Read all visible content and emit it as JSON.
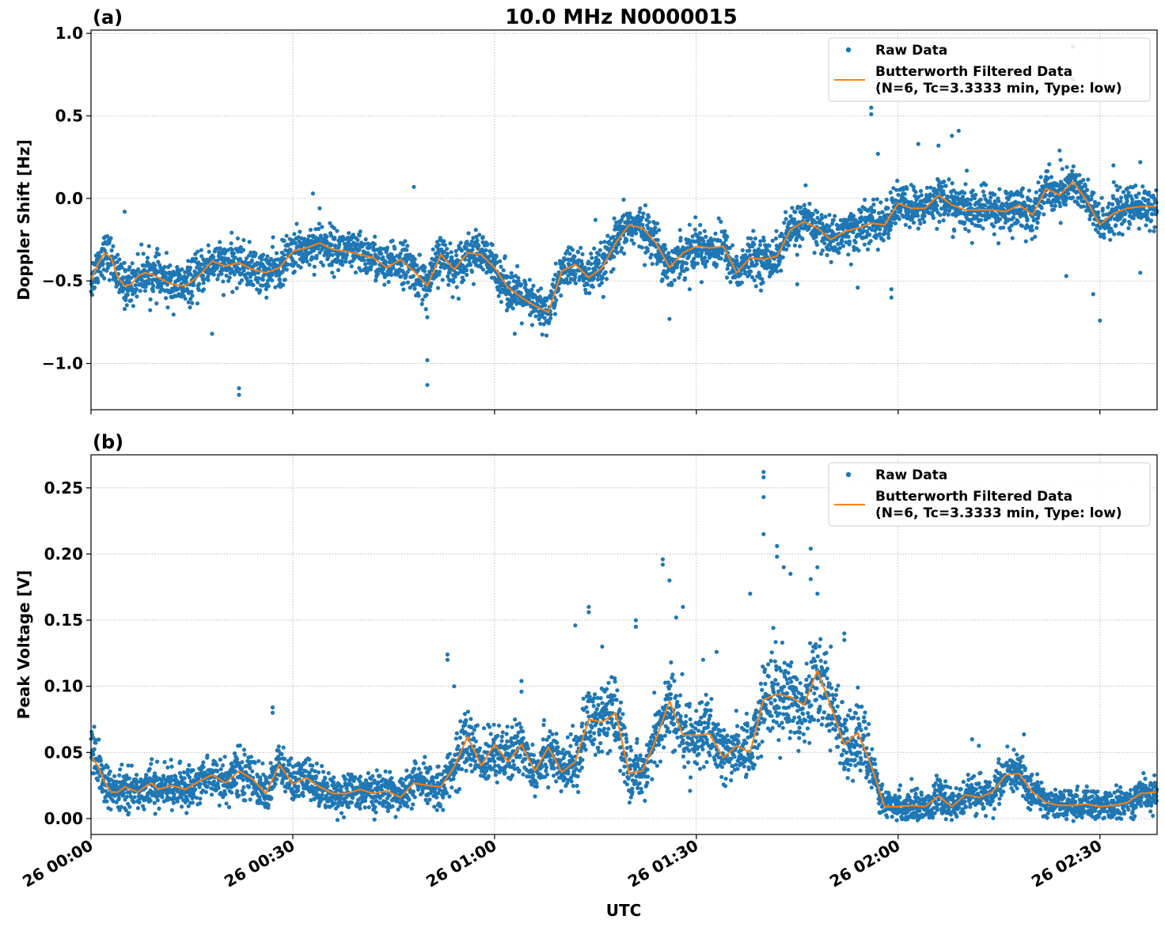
{
  "figure": {
    "title": "10.0 MHz N0000015",
    "xlabel": "UTC"
  },
  "colors": {
    "raw": "#1f77b4",
    "filtered": "#ff7f0e",
    "grid": "#b0b0b0"
  },
  "chart_data": [
    {
      "type": "scatter",
      "panel_label": "(a)",
      "title": "10.0 MHz N0000015",
      "xlabel": "",
      "ylabel": "Doppler Shift [Hz]",
      "x_unit": "minutes after 26 00:00 UTC",
      "xlim": [
        0,
        158.5
      ],
      "ylim": [
        -1.28,
        1.02
      ],
      "yticks": [
        1.0,
        0.5,
        0.0,
        -0.5,
        -1.0
      ],
      "ytick_labels": [
        "1.0",
        "0.5",
        "0.0",
        "−0.5",
        "−1.0"
      ],
      "xticks": [
        0,
        30,
        60,
        90,
        120,
        150
      ],
      "grid": true,
      "legend": {
        "position": "top-right",
        "entries": [
          "Raw Data",
          "Butterworth Filtered Data",
          "(N=6, Tc=3.3333 min, Type: low)"
        ]
      },
      "series": [
        {
          "name": "Raw Data",
          "style": "points",
          "note": "dense noisy scatter around filtered trend",
          "spread": 0.09,
          "outliers": [
            [
              5,
              -0.08
            ],
            [
              18,
              -0.82
            ],
            [
              22,
              -1.15
            ],
            [
              22,
              -1.19
            ],
            [
              33,
              0.03
            ],
            [
              34,
              -0.06
            ],
            [
              48,
              0.07
            ],
            [
              49,
              -0.52
            ],
            [
              50,
              -0.72
            ],
            [
              50,
              -0.98
            ],
            [
              50,
              -1.13
            ],
            [
              63,
              -0.82
            ],
            [
              69,
              -0.7
            ],
            [
              75,
              -0.13
            ],
            [
              82,
              -0.16
            ],
            [
              86,
              -0.73
            ],
            [
              89,
              -0.55
            ],
            [
              93,
              -0.4
            ],
            [
              105,
              -0.52
            ],
            [
              113,
              -0.4
            ],
            [
              114,
              -0.54
            ],
            [
              115,
              -0.06
            ],
            [
              116,
              0.55
            ],
            [
              116,
              0.51
            ],
            [
              117,
              0.27
            ],
            [
              119,
              -0.55
            ],
            [
              119,
              -0.6
            ],
            [
              123,
              0.33
            ],
            [
              126,
              0.32
            ],
            [
              128,
              0.38
            ],
            [
              129,
              0.41
            ],
            [
              131,
              -0.27
            ],
            [
              137,
              -0.24
            ],
            [
              139,
              -0.26
            ],
            [
              142,
              0.13
            ],
            [
              144,
              0.29
            ],
            [
              145,
              -0.47
            ],
            [
              146,
              0.72
            ],
            [
              146,
              0.92
            ],
            [
              149,
              -0.58
            ],
            [
              150,
              -0.74
            ],
            [
              152,
              0.2
            ],
            [
              155,
              -0.12
            ],
            [
              156,
              0.22
            ],
            [
              156,
              -0.45
            ]
          ]
        },
        {
          "name": "Butterworth Filtered Data",
          "style": "line",
          "x": [
            0,
            1,
            2,
            3,
            4,
            5,
            6,
            7,
            8,
            9,
            10,
            12,
            14,
            16,
            18,
            20,
            22,
            24,
            26,
            28,
            30,
            32,
            34,
            36,
            38,
            40,
            42,
            44,
            46,
            48,
            50,
            52,
            54,
            56,
            58,
            60,
            62,
            64,
            66,
            68,
            70,
            72,
            74,
            76,
            78,
            80,
            82,
            84,
            86,
            88,
            90,
            92,
            94,
            96,
            98,
            100,
            102,
            104,
            106,
            108,
            110,
            112,
            114,
            116,
            118,
            120,
            122,
            124,
            126,
            128,
            130,
            132,
            134,
            136,
            138,
            140,
            142,
            144,
            146,
            148,
            150,
            152,
            154,
            156,
            158.5
          ],
          "y": [
            -0.5,
            -0.4,
            -0.33,
            -0.36,
            -0.48,
            -0.53,
            -0.52,
            -0.47,
            -0.45,
            -0.46,
            -0.48,
            -0.52,
            -0.53,
            -0.47,
            -0.38,
            -0.41,
            -0.39,
            -0.43,
            -0.45,
            -0.42,
            -0.32,
            -0.3,
            -0.27,
            -0.31,
            -0.32,
            -0.34,
            -0.36,
            -0.42,
            -0.37,
            -0.44,
            -0.53,
            -0.34,
            -0.43,
            -0.33,
            -0.34,
            -0.42,
            -0.54,
            -0.6,
            -0.65,
            -0.69,
            -0.44,
            -0.4,
            -0.48,
            -0.42,
            -0.27,
            -0.16,
            -0.18,
            -0.27,
            -0.42,
            -0.33,
            -0.29,
            -0.3,
            -0.29,
            -0.45,
            -0.36,
            -0.37,
            -0.35,
            -0.19,
            -0.14,
            -0.18,
            -0.25,
            -0.2,
            -0.18,
            -0.15,
            -0.16,
            -0.03,
            -0.06,
            -0.06,
            0.02,
            -0.04,
            -0.07,
            -0.07,
            -0.07,
            -0.08,
            -0.04,
            -0.1,
            0.06,
            0.02,
            0.1,
            -0.01,
            -0.16,
            -0.09,
            -0.06,
            -0.05,
            -0.05
          ]
        }
      ]
    },
    {
      "type": "scatter",
      "panel_label": "(b)",
      "title": "",
      "xlabel": "UTC",
      "ylabel": "Peak Voltage [V]",
      "x_unit": "minutes after 26 00:00 UTC",
      "xlim": [
        0,
        158.5
      ],
      "ylim": [
        -0.012,
        0.275
      ],
      "yticks": [
        0.25,
        0.2,
        0.15,
        0.1,
        0.05,
        0.0
      ],
      "ytick_labels": [
        "0.25",
        "0.20",
        "0.15",
        "0.10",
        "0.05",
        "0.00"
      ],
      "xticks": [
        0,
        30,
        60,
        90,
        120,
        150
      ],
      "xtick_labels": [
        "26 00:00",
        "26 00:30",
        "26 01:00",
        "26 01:30",
        "26 02:00",
        "26 02:30"
      ],
      "grid": true,
      "legend": {
        "position": "top-right",
        "entries": [
          "Raw Data",
          "Butterworth Filtered Data",
          "(N=6, Tc=3.3333 min, Type: low)"
        ]
      },
      "series": [
        {
          "name": "Raw Data",
          "style": "points",
          "note": "dense noisy scatter around filtered trend",
          "spread": 0.018,
          "outliers": [
            [
              27,
              0.084
            ],
            [
              27,
              0.08
            ],
            [
              53,
              0.12
            ],
            [
              53,
              0.124
            ],
            [
              54,
              0.1
            ],
            [
              64,
              0.104
            ],
            [
              64,
              0.096
            ],
            [
              72,
              0.146
            ],
            [
              74,
              0.16
            ],
            [
              74,
              0.156
            ],
            [
              76,
              0.13
            ],
            [
              81,
              0.15
            ],
            [
              81,
              0.145
            ],
            [
              85,
              0.196
            ],
            [
              85,
              0.192
            ],
            [
              86,
              0.18
            ],
            [
              87,
              0.152
            ],
            [
              88,
              0.16
            ],
            [
              91,
              0.12
            ],
            [
              93,
              0.126
            ],
            [
              98,
              0.17
            ],
            [
              100,
              0.262
            ],
            [
              100,
              0.258
            ],
            [
              100,
              0.243
            ],
            [
              100,
              0.215
            ],
            [
              102,
              0.206
            ],
            [
              102,
              0.198
            ],
            [
              103,
              0.19
            ],
            [
              104,
              0.185
            ],
            [
              107,
              0.181
            ],
            [
              107,
              0.204
            ],
            [
              108,
              0.19
            ],
            [
              108,
              0.17
            ],
            [
              110,
              0.13
            ],
            [
              112,
              0.14
            ],
            [
              112,
              0.135
            ],
            [
              131,
              0.06
            ],
            [
              132,
              0.055
            ],
            [
              122,
              0.03
            ]
          ]
        },
        {
          "name": "Butterworth Filtered Data",
          "style": "line",
          "x": [
            0,
            1,
            2,
            3,
            4,
            5,
            6,
            7,
            8,
            9,
            10,
            12,
            14,
            16,
            18,
            20,
            22,
            24,
            26,
            28,
            30,
            32,
            34,
            36,
            38,
            40,
            42,
            44,
            46,
            48,
            50,
            52,
            54,
            56,
            58,
            60,
            62,
            64,
            66,
            68,
            70,
            72,
            74,
            76,
            78,
            80,
            82,
            84,
            86,
            88,
            90,
            92,
            94,
            96,
            98,
            100,
            102,
            104,
            106,
            108,
            110,
            112,
            114,
            116,
            118,
            120,
            122,
            124,
            126,
            128,
            130,
            132,
            134,
            136,
            138,
            140,
            142,
            144,
            146,
            148,
            150,
            152,
            154,
            156,
            158.5
          ],
          "y": [
            0.047,
            0.04,
            0.028,
            0.02,
            0.02,
            0.024,
            0.022,
            0.02,
            0.024,
            0.027,
            0.022,
            0.025,
            0.022,
            0.028,
            0.033,
            0.027,
            0.036,
            0.03,
            0.019,
            0.041,
            0.026,
            0.031,
            0.024,
            0.019,
            0.019,
            0.022,
            0.019,
            0.021,
            0.016,
            0.027,
            0.025,
            0.024,
            0.039,
            0.062,
            0.04,
            0.056,
            0.043,
            0.056,
            0.036,
            0.054,
            0.035,
            0.043,
            0.075,
            0.073,
            0.08,
            0.034,
            0.036,
            0.06,
            0.089,
            0.063,
            0.063,
            0.064,
            0.046,
            0.055,
            0.05,
            0.09,
            0.094,
            0.092,
            0.086,
            0.112,
            0.085,
            0.056,
            0.065,
            0.04,
            0.009,
            0.009,
            0.01,
            0.009,
            0.017,
            0.009,
            0.018,
            0.016,
            0.02,
            0.033,
            0.034,
            0.02,
            0.012,
            0.01,
            0.01,
            0.011,
            0.009,
            0.01,
            0.012,
            0.019,
            0.02
          ]
        }
      ]
    }
  ]
}
